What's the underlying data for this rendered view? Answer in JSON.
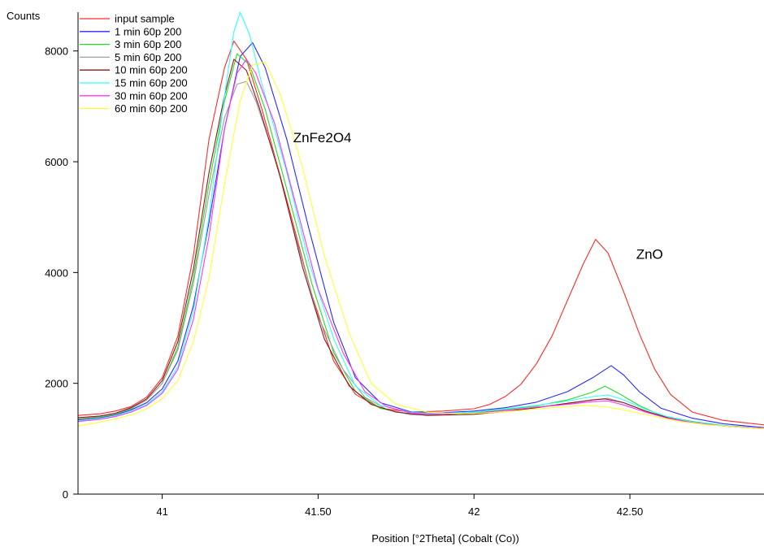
{
  "chart_data": {
    "type": "line",
    "ylabel": "Counts",
    "xlabel": "Position [°2Theta] (Cobalt (Co))",
    "xlim": [
      40.73,
      42.93
    ],
    "ylim": [
      0,
      8700
    ],
    "x_ticks": [
      41,
      41.5,
      42,
      42.5
    ],
    "x_tick_labels": [
      "41",
      "41.50",
      "42",
      "42.50"
    ],
    "y_ticks": [
      0,
      2000,
      4000,
      6000,
      8000
    ],
    "y_tick_labels": [
      "0",
      "2000",
      "4000",
      "6000",
      "8000"
    ],
    "grid": false,
    "legend_position": "top-left",
    "annotations": [
      {
        "text": "ZnFe2O4",
        "x": 41.42,
        "y": 6350
      },
      {
        "text": "ZnO",
        "x": 42.52,
        "y": 4250
      }
    ],
    "series": [
      {
        "name": "input sample",
        "color": "#ff2a2a",
        "points": [
          [
            40.73,
            1420
          ],
          [
            40.8,
            1450
          ],
          [
            40.85,
            1500
          ],
          [
            40.9,
            1580
          ],
          [
            40.95,
            1750
          ],
          [
            41.0,
            2100
          ],
          [
            41.05,
            2850
          ],
          [
            41.1,
            4300
          ],
          [
            41.15,
            6400
          ],
          [
            41.2,
            7700
          ],
          [
            41.23,
            8180
          ],
          [
            41.27,
            7850
          ],
          [
            41.32,
            6950
          ],
          [
            41.4,
            5300
          ],
          [
            41.48,
            3600
          ],
          [
            41.55,
            2400
          ],
          [
            41.62,
            1800
          ],
          [
            41.7,
            1550
          ],
          [
            41.8,
            1480
          ],
          [
            41.9,
            1500
          ],
          [
            42.0,
            1540
          ],
          [
            42.05,
            1620
          ],
          [
            42.1,
            1760
          ],
          [
            42.15,
            1980
          ],
          [
            42.2,
            2350
          ],
          [
            42.25,
            2850
          ],
          [
            42.3,
            3500
          ],
          [
            42.35,
            4150
          ],
          [
            42.39,
            4600
          ],
          [
            42.43,
            4350
          ],
          [
            42.48,
            3650
          ],
          [
            42.53,
            2900
          ],
          [
            42.58,
            2250
          ],
          [
            42.63,
            1800
          ],
          [
            42.7,
            1480
          ],
          [
            42.8,
            1330
          ],
          [
            42.93,
            1250
          ]
        ]
      },
      {
        "name": "1 min 60p 200",
        "color": "#2a2aff",
        "points": [
          [
            40.73,
            1340
          ],
          [
            40.8,
            1380
          ],
          [
            40.85,
            1430
          ],
          [
            40.9,
            1520
          ],
          [
            40.95,
            1650
          ],
          [
            41.0,
            1900
          ],
          [
            41.05,
            2400
          ],
          [
            41.1,
            3400
          ],
          [
            41.15,
            4900
          ],
          [
            41.2,
            6600
          ],
          [
            41.25,
            7900
          ],
          [
            41.29,
            8150
          ],
          [
            41.33,
            7700
          ],
          [
            41.4,
            6400
          ],
          [
            41.47,
            4800
          ],
          [
            41.55,
            3100
          ],
          [
            41.62,
            2100
          ],
          [
            41.7,
            1650
          ],
          [
            41.8,
            1480
          ],
          [
            41.9,
            1470
          ],
          [
            42.0,
            1500
          ],
          [
            42.1,
            1560
          ],
          [
            42.2,
            1660
          ],
          [
            42.3,
            1850
          ],
          [
            42.38,
            2100
          ],
          [
            42.44,
            2320
          ],
          [
            42.48,
            2150
          ],
          [
            42.53,
            1850
          ],
          [
            42.6,
            1550
          ],
          [
            42.7,
            1370
          ],
          [
            42.8,
            1270
          ],
          [
            42.93,
            1200
          ]
        ]
      },
      {
        "name": "3 min 60p 200",
        "color": "#22dd22",
        "points": [
          [
            40.73,
            1350
          ],
          [
            40.8,
            1390
          ],
          [
            40.85,
            1440
          ],
          [
            40.9,
            1540
          ],
          [
            40.95,
            1700
          ],
          [
            41.0,
            2000
          ],
          [
            41.05,
            2650
          ],
          [
            41.1,
            3900
          ],
          [
            41.15,
            5600
          ],
          [
            41.2,
            7100
          ],
          [
            41.24,
            7950
          ],
          [
            41.28,
            7750
          ],
          [
            41.33,
            6950
          ],
          [
            41.4,
            5500
          ],
          [
            41.48,
            3800
          ],
          [
            41.55,
            2550
          ],
          [
            41.62,
            1850
          ],
          [
            41.7,
            1550
          ],
          [
            41.8,
            1430
          ],
          [
            41.9,
            1440
          ],
          [
            42.0,
            1470
          ],
          [
            42.1,
            1530
          ],
          [
            42.2,
            1590
          ],
          [
            42.3,
            1700
          ],
          [
            42.38,
            1840
          ],
          [
            42.42,
            1950
          ],
          [
            42.47,
            1800
          ],
          [
            42.53,
            1600
          ],
          [
            42.6,
            1420
          ],
          [
            42.7,
            1310
          ],
          [
            42.8,
            1240
          ],
          [
            42.93,
            1190
          ]
        ]
      },
      {
        "name": "5 min 60p 200",
        "color": "#a0a0a0",
        "points": [
          [
            40.73,
            1360
          ],
          [
            40.8,
            1400
          ],
          [
            40.85,
            1450
          ],
          [
            40.9,
            1550
          ],
          [
            40.95,
            1700
          ],
          [
            41.0,
            2000
          ],
          [
            41.05,
            2600
          ],
          [
            41.1,
            3800
          ],
          [
            41.15,
            5400
          ],
          [
            41.2,
            6800
          ],
          [
            41.24,
            7400
          ],
          [
            41.27,
            7450
          ],
          [
            41.3,
            7100
          ],
          [
            41.36,
            6100
          ],
          [
            41.43,
            4600
          ],
          [
            41.5,
            3200
          ],
          [
            41.58,
            2250
          ],
          [
            41.65,
            1750
          ],
          [
            41.72,
            1530
          ],
          [
            41.8,
            1430
          ],
          [
            41.9,
            1430
          ],
          [
            42.0,
            1460
          ],
          [
            42.1,
            1510
          ],
          [
            42.2,
            1570
          ],
          [
            42.3,
            1630
          ],
          [
            42.38,
            1700
          ],
          [
            42.43,
            1730
          ],
          [
            42.48,
            1650
          ],
          [
            42.55,
            1500
          ],
          [
            42.62,
            1380
          ],
          [
            42.7,
            1290
          ],
          [
            42.8,
            1230
          ],
          [
            42.93,
            1190
          ]
        ]
      },
      {
        "name": "10 min 60p 200",
        "color": "#8b1a1a",
        "points": [
          [
            40.73,
            1380
          ],
          [
            40.8,
            1410
          ],
          [
            40.85,
            1460
          ],
          [
            40.9,
            1560
          ],
          [
            40.95,
            1720
          ],
          [
            41.0,
            2050
          ],
          [
            41.05,
            2750
          ],
          [
            41.1,
            4050
          ],
          [
            41.15,
            5800
          ],
          [
            41.2,
            7200
          ],
          [
            41.23,
            7850
          ],
          [
            41.27,
            7650
          ],
          [
            41.31,
            7000
          ],
          [
            41.38,
            5700
          ],
          [
            41.45,
            4100
          ],
          [
            41.52,
            2800
          ],
          [
            41.6,
            1950
          ],
          [
            41.67,
            1620
          ],
          [
            41.75,
            1480
          ],
          [
            41.85,
            1420
          ],
          [
            42.0,
            1440
          ],
          [
            42.1,
            1490
          ],
          [
            42.2,
            1560
          ],
          [
            42.3,
            1640
          ],
          [
            42.38,
            1700
          ],
          [
            42.42,
            1720
          ],
          [
            42.48,
            1650
          ],
          [
            42.55,
            1500
          ],
          [
            42.62,
            1380
          ],
          [
            42.7,
            1290
          ],
          [
            42.8,
            1230
          ],
          [
            42.93,
            1180
          ]
        ]
      },
      {
        "name": "15 min 60p 200",
        "color": "#33ffff",
        "points": [
          [
            40.73,
            1320
          ],
          [
            40.8,
            1360
          ],
          [
            40.85,
            1410
          ],
          [
            40.9,
            1500
          ],
          [
            40.95,
            1620
          ],
          [
            41.0,
            1850
          ],
          [
            41.05,
            2300
          ],
          [
            41.1,
            3300
          ],
          [
            41.15,
            5000
          ],
          [
            41.2,
            7200
          ],
          [
            41.23,
            8350
          ],
          [
            41.25,
            8700
          ],
          [
            41.28,
            8300
          ],
          [
            41.32,
            7400
          ],
          [
            41.4,
            5800
          ],
          [
            41.47,
            4200
          ],
          [
            41.55,
            2800
          ],
          [
            41.62,
            1950
          ],
          [
            41.7,
            1600
          ],
          [
            41.8,
            1470
          ],
          [
            41.9,
            1460
          ],
          [
            42.0,
            1480
          ],
          [
            42.1,
            1540
          ],
          [
            42.2,
            1600
          ],
          [
            42.3,
            1680
          ],
          [
            42.38,
            1760
          ],
          [
            42.43,
            1790
          ],
          [
            42.48,
            1700
          ],
          [
            42.55,
            1530
          ],
          [
            42.62,
            1400
          ],
          [
            42.7,
            1300
          ],
          [
            42.8,
            1240
          ],
          [
            42.93,
            1190
          ]
        ]
      },
      {
        "name": "30 min 60p 200",
        "color": "#ff33ff",
        "points": [
          [
            40.73,
            1310
          ],
          [
            40.8,
            1350
          ],
          [
            40.85,
            1400
          ],
          [
            40.9,
            1480
          ],
          [
            40.95,
            1600
          ],
          [
            41.0,
            1820
          ],
          [
            41.05,
            2250
          ],
          [
            41.1,
            3150
          ],
          [
            41.15,
            4650
          ],
          [
            41.2,
            6600
          ],
          [
            41.24,
            7600
          ],
          [
            41.27,
            7850
          ],
          [
            41.3,
            7600
          ],
          [
            41.36,
            6700
          ],
          [
            41.43,
            5200
          ],
          [
            41.5,
            3700
          ],
          [
            41.58,
            2550
          ],
          [
            41.65,
            1850
          ],
          [
            41.72,
            1580
          ],
          [
            41.8,
            1460
          ],
          [
            41.9,
            1440
          ],
          [
            42.0,
            1460
          ],
          [
            42.1,
            1510
          ],
          [
            42.2,
            1570
          ],
          [
            42.3,
            1620
          ],
          [
            42.38,
            1670
          ],
          [
            42.43,
            1680
          ],
          [
            42.48,
            1610
          ],
          [
            42.55,
            1480
          ],
          [
            42.62,
            1370
          ],
          [
            42.7,
            1290
          ],
          [
            42.8,
            1230
          ],
          [
            42.93,
            1190
          ]
        ]
      },
      {
        "name": "60 min 60p 200",
        "color": "#ffff33",
        "points": [
          [
            40.73,
            1230
          ],
          [
            40.8,
            1300
          ],
          [
            40.85,
            1360
          ],
          [
            40.9,
            1430
          ],
          [
            40.95,
            1540
          ],
          [
            41.0,
            1720
          ],
          [
            41.05,
            2050
          ],
          [
            41.1,
            2750
          ],
          [
            41.15,
            3900
          ],
          [
            41.2,
            5600
          ],
          [
            41.25,
            7100
          ],
          [
            41.29,
            7750
          ],
          [
            41.33,
            7800
          ],
          [
            41.38,
            7200
          ],
          [
            41.45,
            5900
          ],
          [
            41.52,
            4300
          ],
          [
            41.6,
            2900
          ],
          [
            41.67,
            2000
          ],
          [
            41.75,
            1620
          ],
          [
            41.85,
            1480
          ],
          [
            41.95,
            1450
          ],
          [
            42.05,
            1470
          ],
          [
            42.15,
            1510
          ],
          [
            42.25,
            1560
          ],
          [
            42.35,
            1600
          ],
          [
            42.42,
            1580
          ],
          [
            42.5,
            1500
          ],
          [
            42.58,
            1400
          ],
          [
            42.66,
            1310
          ],
          [
            42.75,
            1250
          ],
          [
            42.85,
            1210
          ],
          [
            42.93,
            1180
          ]
        ]
      }
    ]
  }
}
